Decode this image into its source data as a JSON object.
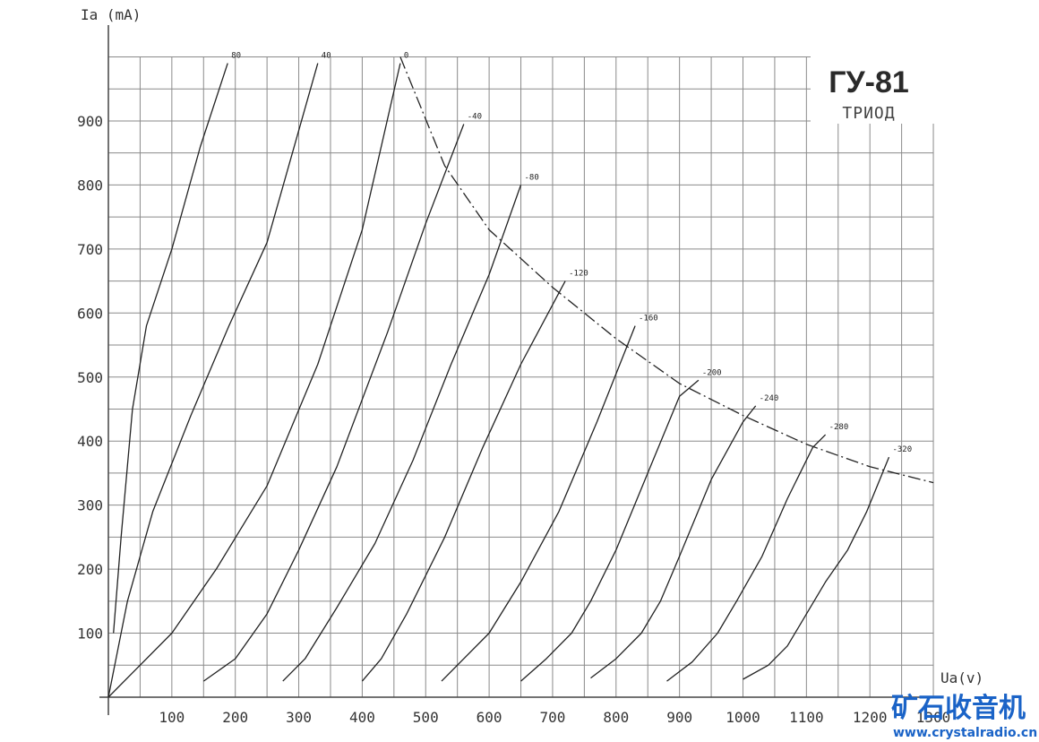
{
  "chart_data": {
    "type": "line",
    "title": "ГУ-81",
    "subtitle": "ТРИОД",
    "ylabel": "Ia (mA)",
    "xlabel": "Ua(v)",
    "xlim": [
      0,
      1300
    ],
    "ylim": [
      0,
      1000
    ],
    "xticks": [
      "100",
      "200",
      "300",
      "400",
      "500",
      "600",
      "700",
      "800",
      "900",
      "1000",
      "1100",
      "1200",
      "1300"
    ],
    "yticks": [
      "100",
      "200",
      "300",
      "400",
      "500",
      "600",
      "700",
      "800",
      "900"
    ],
    "grid": true,
    "series": [
      {
        "name": "80",
        "points": [
          [
            8,
            100
          ],
          [
            20,
            250
          ],
          [
            38,
            450
          ],
          [
            60,
            580
          ],
          [
            100,
            700
          ],
          [
            145,
            860
          ],
          [
            188,
            990
          ]
        ]
      },
      {
        "name": "40",
        "points": [
          [
            0,
            0
          ],
          [
            30,
            150
          ],
          [
            70,
            290
          ],
          [
            130,
            440
          ],
          [
            190,
            580
          ],
          [
            250,
            710
          ],
          [
            330,
            990
          ]
        ]
      },
      {
        "name": "0",
        "points": [
          [
            0,
            0
          ],
          [
            40,
            40
          ],
          [
            100,
            100
          ],
          [
            170,
            200
          ],
          [
            250,
            330
          ],
          [
            330,
            520
          ],
          [
            400,
            730
          ],
          [
            460,
            990
          ]
        ]
      },
      {
        "name": "-40",
        "points": [
          [
            150,
            25
          ],
          [
            200,
            60
          ],
          [
            250,
            130
          ],
          [
            300,
            230
          ],
          [
            360,
            360
          ],
          [
            440,
            570
          ],
          [
            500,
            740
          ],
          [
            560,
            895
          ]
        ]
      },
      {
        "name": "-80",
        "points": [
          [
            275,
            25
          ],
          [
            310,
            60
          ],
          [
            360,
            140
          ],
          [
            420,
            240
          ],
          [
            480,
            370
          ],
          [
            540,
            520
          ],
          [
            600,
            660
          ],
          [
            650,
            800
          ]
        ]
      },
      {
        "name": "-120",
        "points": [
          [
            400,
            25
          ],
          [
            430,
            60
          ],
          [
            470,
            130
          ],
          [
            530,
            250
          ],
          [
            590,
            390
          ],
          [
            650,
            520
          ],
          [
            720,
            650
          ]
        ]
      },
      {
        "name": "-160",
        "points": [
          [
            525,
            25
          ],
          [
            560,
            60
          ],
          [
            600,
            100
          ],
          [
            650,
            180
          ],
          [
            710,
            290
          ],
          [
            770,
            430
          ],
          [
            830,
            580
          ]
        ]
      },
      {
        "name": "-200",
        "points": [
          [
            650,
            25
          ],
          [
            690,
            60
          ],
          [
            730,
            100
          ],
          [
            760,
            150
          ],
          [
            800,
            230
          ],
          [
            850,
            350
          ],
          [
            900,
            470
          ],
          [
            930,
            495
          ]
        ]
      },
      {
        "name": "-240",
        "points": [
          [
            760,
            30
          ],
          [
            800,
            60
          ],
          [
            840,
            100
          ],
          [
            870,
            150
          ],
          [
            900,
            220
          ],
          [
            950,
            340
          ],
          [
            1000,
            430
          ],
          [
            1020,
            455
          ]
        ]
      },
      {
        "name": "-280",
        "points": [
          [
            880,
            25
          ],
          [
            920,
            55
          ],
          [
            960,
            100
          ],
          [
            990,
            150
          ],
          [
            1030,
            220
          ],
          [
            1070,
            310
          ],
          [
            1110,
            390
          ],
          [
            1130,
            410
          ]
        ]
      },
      {
        "name": "-320",
        "points": [
          [
            1000,
            28
          ],
          [
            1040,
            50
          ],
          [
            1070,
            80
          ],
          [
            1100,
            130
          ],
          [
            1130,
            180
          ],
          [
            1165,
            230
          ],
          [
            1195,
            290
          ],
          [
            1230,
            375
          ]
        ]
      }
    ],
    "boundary": {
      "points": [
        [
          460,
          1000
        ],
        [
          530,
          830
        ],
        [
          600,
          730
        ],
        [
          700,
          640
        ],
        [
          800,
          560
        ],
        [
          900,
          490
        ],
        [
          1000,
          440
        ],
        [
          1100,
          395
        ],
        [
          1200,
          360
        ],
        [
          1300,
          335
        ]
      ]
    }
  },
  "watermark": {
    "cn": "矿石收音机",
    "url": "www.crystalradio.cn"
  }
}
